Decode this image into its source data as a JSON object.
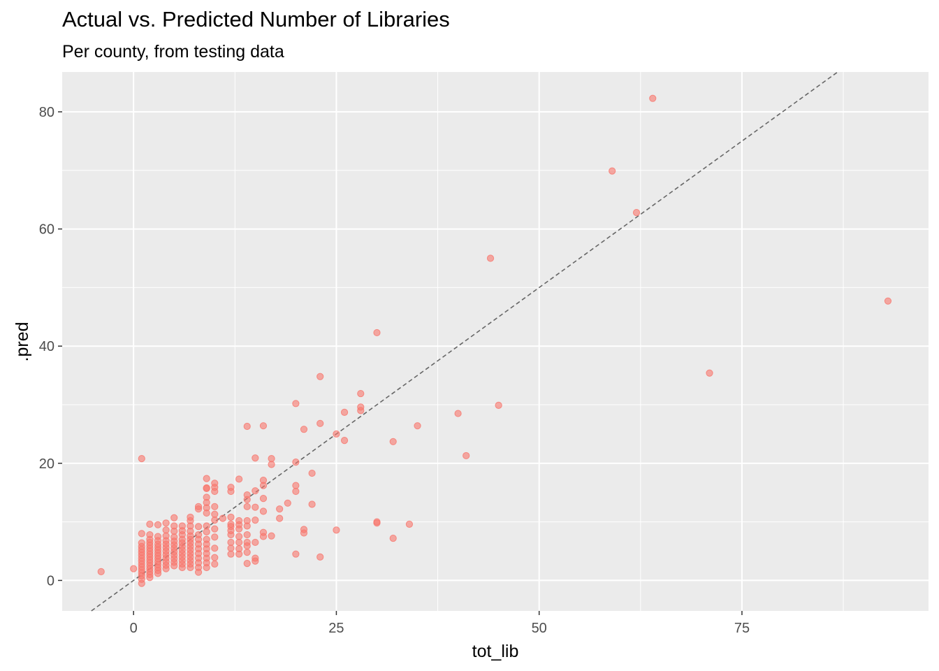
{
  "chart_data": {
    "type": "scatter",
    "title": "Actual vs. Predicted Number of Libraries",
    "subtitle": "Per county, from testing data",
    "xlabel": "tot_lib",
    "ylabel": ".pred",
    "xlim": [
      -8.8,
      98.0
    ],
    "ylim": [
      -5.2,
      86.8
    ],
    "x_ticks": [
      0,
      25,
      50,
      75
    ],
    "x_tick_labels": [
      "0",
      "25",
      "50",
      "75"
    ],
    "y_ticks": [
      0,
      20,
      40,
      60,
      80
    ],
    "y_tick_labels": [
      "0",
      "20",
      "40",
      "60",
      "80"
    ],
    "grid": true,
    "background": "#EBEBEB",
    "point_color": "#F8766D",
    "reference_line": {
      "slope": 1,
      "intercept": 0,
      "style": "dashed",
      "color": "#666666"
    },
    "points": [
      [
        -4,
        1.5
      ],
      [
        0,
        2
      ],
      [
        1,
        20.8
      ],
      [
        1,
        -0.5
      ],
      [
        1,
        0.2
      ],
      [
        1,
        0.8
      ],
      [
        1,
        1.3
      ],
      [
        1,
        1.8
      ],
      [
        1,
        2.3
      ],
      [
        1,
        2.8
      ],
      [
        1,
        3.3
      ],
      [
        1,
        3.8
      ],
      [
        1,
        4.3
      ],
      [
        1,
        4.8
      ],
      [
        1,
        5.3
      ],
      [
        1,
        5.8
      ],
      [
        1,
        6.4
      ],
      [
        1,
        8
      ],
      [
        2,
        0.5
      ],
      [
        2,
        1
      ],
      [
        2,
        1.5
      ],
      [
        2,
        2
      ],
      [
        2,
        2.5
      ],
      [
        2,
        3
      ],
      [
        2,
        3.5
      ],
      [
        2,
        4
      ],
      [
        2,
        4.5
      ],
      [
        2,
        5
      ],
      [
        2,
        5.5
      ],
      [
        2,
        6
      ],
      [
        2,
        6.5
      ],
      [
        2,
        7
      ],
      [
        2,
        7.8
      ],
      [
        2,
        9.6
      ],
      [
        3,
        1.2
      ],
      [
        3,
        1.7
      ],
      [
        3,
        2.2
      ],
      [
        3,
        2.7
      ],
      [
        3,
        3.2
      ],
      [
        3,
        3.7
      ],
      [
        3,
        4.2
      ],
      [
        3,
        4.7
      ],
      [
        3,
        5.2
      ],
      [
        3,
        5.7
      ],
      [
        3,
        6.2
      ],
      [
        3,
        6.8
      ],
      [
        3,
        7.5
      ],
      [
        3,
        9.5
      ],
      [
        4,
        2
      ],
      [
        4,
        2.6
      ],
      [
        4,
        3.2
      ],
      [
        4,
        3.8
      ],
      [
        4,
        4.4
      ],
      [
        4,
        5
      ],
      [
        4,
        5.6
      ],
      [
        4,
        6.2
      ],
      [
        4,
        6.8
      ],
      [
        4,
        7.6
      ],
      [
        4,
        8.6
      ],
      [
        4,
        9.8
      ],
      [
        5,
        2.5
      ],
      [
        5,
        3.1
      ],
      [
        5,
        3.7
      ],
      [
        5,
        4.3
      ],
      [
        5,
        4.9
      ],
      [
        5,
        5.5
      ],
      [
        5,
        6.1
      ],
      [
        5,
        6.7
      ],
      [
        5,
        7.4
      ],
      [
        5,
        8.4
      ],
      [
        5,
        9.3
      ],
      [
        5,
        10.7
      ],
      [
        6,
        2.2
      ],
      [
        6,
        2.8
      ],
      [
        6,
        3.4
      ],
      [
        6,
        4
      ],
      [
        6,
        4.6
      ],
      [
        6,
        5.2
      ],
      [
        6,
        5.8
      ],
      [
        6,
        6.4
      ],
      [
        6,
        7
      ],
      [
        6,
        7.8
      ],
      [
        6,
        8.5
      ],
      [
        6,
        9.3
      ],
      [
        7,
        2.2
      ],
      [
        7,
        2.8
      ],
      [
        7,
        3.4
      ],
      [
        7,
        4
      ],
      [
        7,
        4.6
      ],
      [
        7,
        5.2
      ],
      [
        7,
        5.8
      ],
      [
        7,
        6.4
      ],
      [
        7,
        7
      ],
      [
        7,
        7.6
      ],
      [
        7,
        8.4
      ],
      [
        7,
        9.3
      ],
      [
        7,
        10.2
      ],
      [
        7,
        10.8
      ],
      [
        8,
        1.4
      ],
      [
        8,
        2.2
      ],
      [
        8,
        3
      ],
      [
        8,
        3.8
      ],
      [
        8,
        4.6
      ],
      [
        8,
        5.4
      ],
      [
        8,
        6.2
      ],
      [
        8,
        7
      ],
      [
        8,
        7.8
      ],
      [
        8,
        9.2
      ],
      [
        8,
        12.2
      ],
      [
        8,
        12.6
      ],
      [
        9,
        2.2
      ],
      [
        9,
        3
      ],
      [
        9,
        3.8
      ],
      [
        9,
        4.6
      ],
      [
        9,
        5.4
      ],
      [
        9,
        6.2
      ],
      [
        9,
        7
      ],
      [
        9,
        8.3
      ],
      [
        9,
        9.3
      ],
      [
        9,
        11.5
      ],
      [
        9,
        12.4
      ],
      [
        9,
        13.3
      ],
      [
        9,
        14.2
      ],
      [
        9,
        15.7
      ],
      [
        9,
        15.8
      ],
      [
        9,
        17.4
      ],
      [
        10,
        2.8
      ],
      [
        10,
        3.9
      ],
      [
        10,
        5.5
      ],
      [
        10,
        7.4
      ],
      [
        10,
        8.8
      ],
      [
        10,
        10.3
      ],
      [
        10,
        11.3
      ],
      [
        10,
        12.6
      ],
      [
        10,
        15.2
      ],
      [
        10,
        15.9
      ],
      [
        10,
        16.6
      ],
      [
        11,
        10.6
      ],
      [
        12,
        4.5
      ],
      [
        12,
        5.5
      ],
      [
        12,
        6.5
      ],
      [
        12,
        7.8
      ],
      [
        12,
        8.5
      ],
      [
        12,
        9.2
      ],
      [
        12,
        9.6
      ],
      [
        12,
        10.8
      ],
      [
        12,
        15.2
      ],
      [
        12,
        15.9
      ],
      [
        13,
        4.5
      ],
      [
        13,
        5.4
      ],
      [
        13,
        6.5
      ],
      [
        13,
        7.5
      ],
      [
        13,
        8.8
      ],
      [
        13,
        9.5
      ],
      [
        13,
        10.2
      ],
      [
        13,
        17.3
      ],
      [
        14,
        2.9
      ],
      [
        14,
        4.8
      ],
      [
        14,
        5.9
      ],
      [
        14,
        6.5
      ],
      [
        14,
        7.8
      ],
      [
        14,
        9.3
      ],
      [
        14,
        10.2
      ],
      [
        14,
        12.6
      ],
      [
        14,
        13.8
      ],
      [
        14,
        14.6
      ],
      [
        14,
        26.3
      ],
      [
        15,
        3.3
      ],
      [
        15,
        3.8
      ],
      [
        15,
        6.5
      ],
      [
        15,
        10.3
      ],
      [
        15,
        12.5
      ],
      [
        15,
        15.3
      ],
      [
        15,
        20.9
      ],
      [
        16,
        7.5
      ],
      [
        16,
        8.2
      ],
      [
        16,
        11.8
      ],
      [
        16,
        14
      ],
      [
        16,
        16.2
      ],
      [
        16,
        17.1
      ],
      [
        16,
        26.4
      ],
      [
        17,
        7.6
      ],
      [
        17,
        19.8
      ],
      [
        17,
        20.8
      ],
      [
        18,
        10.6
      ],
      [
        18,
        12.2
      ],
      [
        19,
        13.2
      ],
      [
        20,
        4.5
      ],
      [
        20,
        15.2
      ],
      [
        20,
        16.2
      ],
      [
        20,
        20.2
      ],
      [
        20,
        30.2
      ],
      [
        21,
        8.1
      ],
      [
        21,
        8.7
      ],
      [
        21,
        25.8
      ],
      [
        22,
        13
      ],
      [
        22,
        18.3
      ],
      [
        23,
        4
      ],
      [
        23,
        26.8
      ],
      [
        23,
        34.8
      ],
      [
        25,
        8.6
      ],
      [
        25,
        25
      ],
      [
        26,
        23.9
      ],
      [
        26,
        28.7
      ],
      [
        28,
        29
      ],
      [
        28,
        29.6
      ],
      [
        28,
        31.9
      ],
      [
        30,
        9.8
      ],
      [
        30,
        10
      ],
      [
        30,
        42.3
      ],
      [
        32,
        7.2
      ],
      [
        32,
        23.7
      ],
      [
        34,
        9.6
      ],
      [
        35,
        26.4
      ],
      [
        40,
        28.5
      ],
      [
        41,
        21.3
      ],
      [
        44,
        55
      ],
      [
        45,
        29.9
      ],
      [
        59,
        69.9
      ],
      [
        62,
        62.8
      ],
      [
        64,
        82.3
      ],
      [
        71,
        35.4
      ],
      [
        93,
        47.7
      ]
    ]
  }
}
